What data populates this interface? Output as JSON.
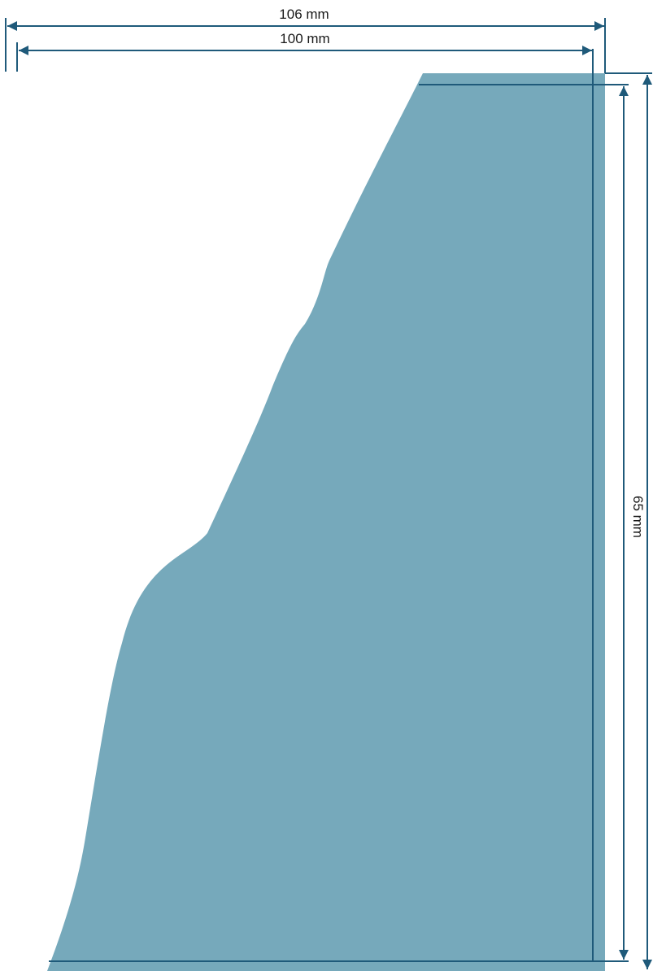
{
  "diagram": {
    "dimensions": {
      "outer_width": "106 mm",
      "inner_width": "100 mm",
      "height": "65 mm"
    },
    "colors": {
      "shape_fill": "#76a9bb",
      "dimension_line": "#1f5a7a",
      "label": "#1a1a1a"
    }
  }
}
